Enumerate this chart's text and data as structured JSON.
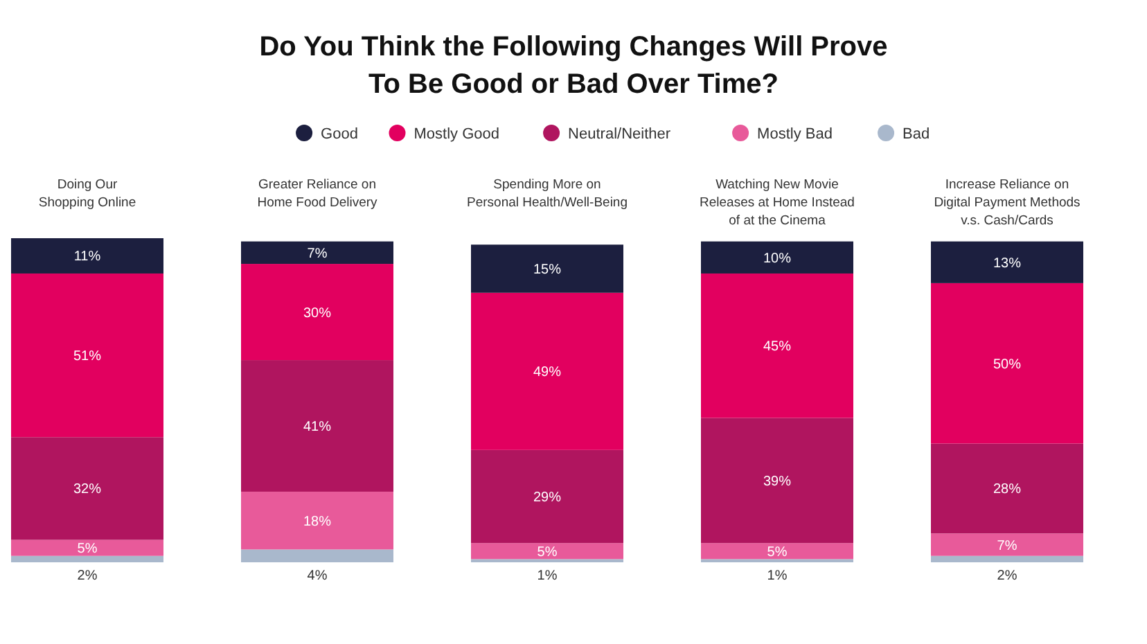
{
  "chart_data": {
    "type": "bar",
    "stacked": true,
    "title": "Do You Think the Following Changes Will Prove\nTo Be Good or Bad Over Time?",
    "categories": [
      "Doing Our\nShopping Online",
      "Greater Reliance on\nHome Food Delivery",
      "Spending More on\nPersonal Health/Well-Being",
      "Watching New Movie\nReleases at Home Instead\nof at the Cinema",
      "Increase Reliance on\nDigital Payment Methods\nv.s. Cash/Cards"
    ],
    "series": [
      {
        "name": "Bad",
        "color": "#a9b8cc",
        "values": [
          2,
          4,
          1,
          1,
          2
        ],
        "value_labels": [
          "2%",
          "4%",
          "1%",
          "1%",
          "2%"
        ]
      },
      {
        "name": "Mostly Bad",
        "color": "#e85a9a",
        "values": [
          5,
          18,
          5,
          5,
          7
        ],
        "value_labels": [
          "5%",
          "18%",
          "5%",
          "5%",
          "7%"
        ]
      },
      {
        "name": "Neutral/Neither",
        "color": "#b0155f",
        "values": [
          32,
          41,
          29,
          39,
          28
        ],
        "value_labels": [
          "32%",
          "41%",
          "29%",
          "39%",
          "28%"
        ]
      },
      {
        "name": "Mostly Good",
        "color": "#e2005f",
        "values": [
          51,
          30,
          49,
          45,
          50
        ],
        "value_labels": [
          "51%",
          "30%",
          "49%",
          "45%",
          "50%"
        ]
      },
      {
        "name": "Good",
        "color": "#1c1f3f",
        "values": [
          11,
          7,
          15,
          10,
          13
        ],
        "value_labels": [
          "11%",
          "7%",
          "15%",
          "10%",
          "13%"
        ]
      }
    ],
    "legend": "top"
  }
}
